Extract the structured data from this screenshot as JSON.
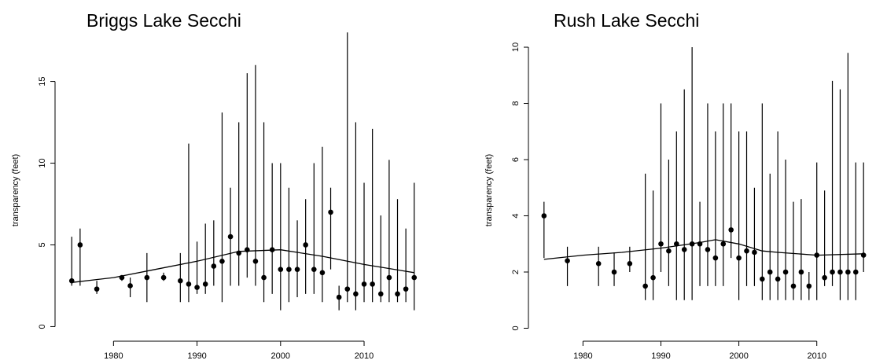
{
  "chart_data": [
    {
      "type": "scatter",
      "title": "Briggs Lake Secchi",
      "xlabel": "",
      "ylabel": "transparency (feet)",
      "xlim": [
        1973,
        2018
      ],
      "ylim": [
        -0.7,
        19.5
      ],
      "xticks": [
        1980,
        1990,
        2000,
        2010
      ],
      "yticks": [
        0,
        5,
        10,
        15
      ],
      "grid": false,
      "series": [
        {
          "name": "",
          "kind": "points",
          "x": [
            1975,
            1976,
            1978,
            1981,
            1982,
            1984,
            1986,
            1988,
            1989,
            1990,
            1991,
            1992,
            1993,
            1994,
            1995,
            1996,
            1997,
            1998,
            1999,
            2000,
            2001,
            2002,
            2003,
            2004,
            2005,
            2006,
            2007,
            2008,
            2009,
            2010,
            2011,
            2012,
            2013,
            2014,
            2015,
            2016
          ],
          "y": [
            2.8,
            5.0,
            2.3,
            3.0,
            2.5,
            3.0,
            3.0,
            2.8,
            2.6,
            2.4,
            2.6,
            3.7,
            4.0,
            5.5,
            4.5,
            4.7,
            4.0,
            3.0,
            4.7,
            3.5,
            3.5,
            3.5,
            5.0,
            3.5,
            3.3,
            7.0,
            1.8,
            2.3,
            2.0,
            2.6,
            2.6,
            2.0,
            3.0,
            2.0,
            2.3,
            3.0
          ]
        },
        {
          "name": "",
          "kind": "range",
          "x": [
            1975,
            1976,
            1978,
            1981,
            1982,
            1984,
            1986,
            1988,
            1989,
            1990,
            1991,
            1992,
            1993,
            1994,
            1995,
            1996,
            1997,
            1998,
            1999,
            2000,
            2001,
            2002,
            2003,
            2004,
            2005,
            2006,
            2007,
            2008,
            2009,
            2010,
            2011,
            2012,
            2013,
            2014,
            2015,
            2016
          ],
          "low": [
            2.5,
            2.5,
            2.0,
            2.8,
            1.8,
            1.5,
            2.8,
            1.5,
            1.5,
            2.0,
            2.0,
            2.5,
            1.5,
            2.5,
            2.5,
            3.0,
            2.5,
            1.5,
            2.0,
            1.0,
            1.5,
            1.8,
            2.0,
            2.0,
            1.5,
            3.5,
            1.0,
            1.5,
            1.0,
            1.5,
            1.5,
            1.5,
            1.5,
            1.5,
            1.5,
            1.0
          ],
          "high": [
            5.5,
            6.0,
            2.8,
            3.0,
            3.0,
            4.5,
            3.3,
            4.5,
            11.2,
            5.2,
            6.3,
            6.5,
            13.1,
            8.5,
            12.5,
            15.5,
            16.0,
            12.5,
            10.0,
            10.0,
            8.5,
            6.5,
            7.8,
            10.0,
            11.0,
            8.5,
            2.5,
            18.0,
            12.5,
            8.8,
            12.1,
            6.8,
            10.2,
            7.8,
            6.0,
            8.8
          ]
        },
        {
          "name": "",
          "kind": "line",
          "x": [
            1975,
            1980,
            1985,
            1990,
            1995,
            2000,
            2005,
            2010,
            2016
          ],
          "y": [
            2.7,
            3.0,
            3.5,
            4.0,
            4.6,
            4.7,
            4.3,
            3.8,
            3.3
          ]
        }
      ]
    },
    {
      "type": "scatter",
      "title": "Rush Lake Secchi",
      "xlabel": "",
      "ylabel": "transparency (feet)",
      "xlim": [
        1973,
        2018
      ],
      "ylim": [
        -0.35,
        11.4
      ],
      "xticks": [
        1980,
        1990,
        2000,
        2010
      ],
      "yticks": [
        0,
        2,
        4,
        6,
        8,
        10
      ],
      "grid": false,
      "series": [
        {
          "name": "",
          "kind": "points",
          "x": [
            1975,
            1978,
            1982,
            1984,
            1986,
            1988,
            1989,
            1990,
            1991,
            1992,
            1993,
            1994,
            1995,
            1996,
            1997,
            1998,
            1999,
            2000,
            2001,
            2002,
            2003,
            2004,
            2005,
            2006,
            2007,
            2008,
            2009,
            2010,
            2011,
            2012,
            2013,
            2014,
            2015,
            2016
          ],
          "y": [
            4.0,
            2.4,
            2.3,
            2.0,
            2.3,
            1.5,
            1.8,
            3.0,
            2.75,
            3.0,
            2.8,
            3.0,
            3.0,
            2.8,
            2.5,
            3.0,
            3.5,
            2.5,
            2.75,
            2.7,
            1.75,
            2.0,
            1.75,
            2.0,
            1.5,
            2.0,
            1.5,
            2.6,
            1.8,
            2.0,
            2.0,
            2.0,
            2.0,
            2.6
          ]
        },
        {
          "name": "",
          "kind": "range",
          "x": [
            1975,
            1978,
            1982,
            1984,
            1986,
            1988,
            1989,
            1990,
            1991,
            1992,
            1993,
            1994,
            1995,
            1996,
            1997,
            1998,
            1999,
            2000,
            2001,
            2002,
            2003,
            2004,
            2005,
            2006,
            2007,
            2008,
            2009,
            2010,
            2011,
            2012,
            2013,
            2014,
            2015,
            2016
          ],
          "low": [
            2.5,
            1.5,
            1.5,
            1.5,
            2.0,
            1.0,
            1.0,
            2.0,
            1.5,
            1.0,
            1.0,
            1.0,
            1.5,
            1.5,
            1.5,
            1.5,
            2.5,
            1.0,
            1.5,
            1.5,
            1.0,
            1.0,
            1.0,
            1.0,
            1.0,
            1.0,
            1.0,
            1.0,
            1.5,
            1.5,
            1.0,
            1.0,
            1.0,
            2.0
          ],
          "high": [
            4.5,
            2.9,
            2.9,
            2.7,
            2.9,
            5.5,
            4.9,
            8.0,
            6.0,
            7.0,
            8.5,
            10.0,
            4.5,
            8.0,
            7.0,
            8.0,
            8.0,
            7.0,
            7.0,
            5.0,
            8.0,
            5.5,
            7.0,
            6.0,
            4.5,
            4.6,
            2.0,
            5.9,
            4.9,
            8.8,
            8.5,
            9.8,
            5.9,
            5.9
          ]
        },
        {
          "name": "",
          "kind": "line",
          "x": [
            1975,
            1980,
            1985,
            1990,
            1995,
            1997,
            2000,
            2003,
            2005,
            2010,
            2016
          ],
          "y": [
            2.45,
            2.6,
            2.7,
            2.85,
            3.05,
            3.15,
            3.0,
            2.75,
            2.7,
            2.6,
            2.65
          ]
        }
      ]
    }
  ]
}
